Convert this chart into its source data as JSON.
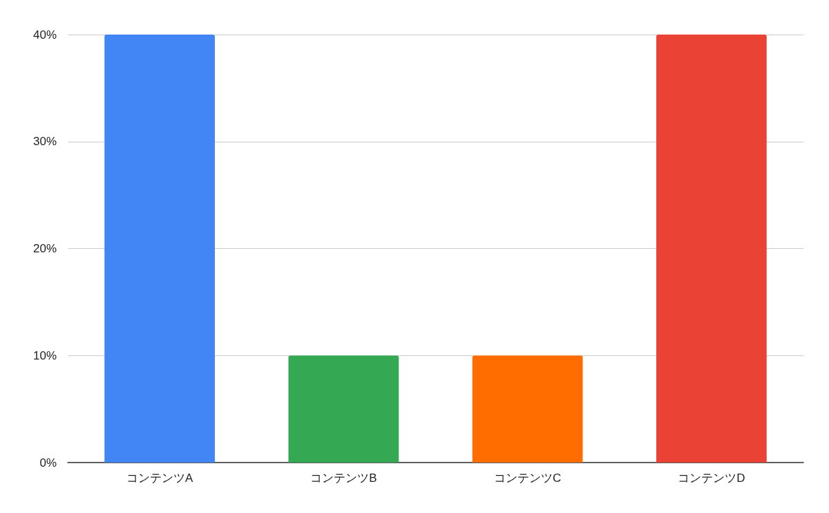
{
  "chart_data": {
    "type": "bar",
    "categories": [
      "コンテンツA",
      "コンテンツB",
      "コンテンツC",
      "コンテンツD"
    ],
    "values": [
      40,
      10,
      10,
      40
    ],
    "colors": [
      "#4285f4",
      "#34a853",
      "#ff6d01",
      "#ea4335"
    ],
    "ylim": [
      0,
      40
    ],
    "yticks": [
      {
        "value": 0,
        "label": "0%"
      },
      {
        "value": 10,
        "label": "10%"
      },
      {
        "value": 20,
        "label": "20%"
      },
      {
        "value": 30,
        "label": "30%"
      },
      {
        "value": 40,
        "label": "40%"
      }
    ],
    "grid": "y"
  }
}
